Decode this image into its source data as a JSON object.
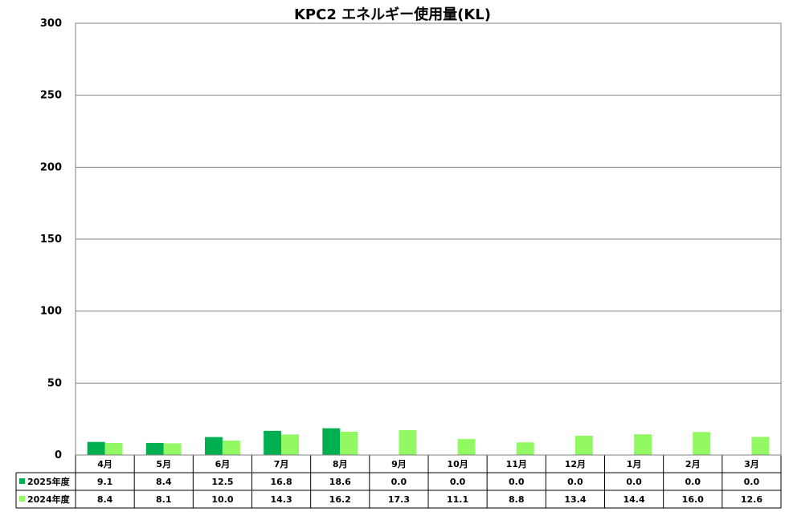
{
  "chart_data": {
    "type": "bar",
    "title": "KPC2 エネルギー使用量(KL)",
    "categories": [
      "4月",
      "5月",
      "6月",
      "7月",
      "8月",
      "9月",
      "10月",
      "11月",
      "12月",
      "1月",
      "2月",
      "3月"
    ],
    "series": [
      {
        "name": "2025年度",
        "color": "#00b050",
        "values": [
          9.1,
          8.4,
          12.5,
          16.8,
          18.6,
          0.0,
          0.0,
          0.0,
          0.0,
          0.0,
          0.0,
          0.0
        ],
        "labels": [
          "9.1",
          "8.4",
          "12.5",
          "16.8",
          "18.6",
          "0.0",
          "0.0",
          "0.0",
          "0.0",
          "0.0",
          "0.0",
          "0.0"
        ]
      },
      {
        "name": "2024年度",
        "color": "#92f962",
        "values": [
          8.4,
          8.1,
          10.0,
          14.3,
          16.2,
          17.3,
          11.1,
          8.8,
          13.4,
          14.4,
          16.0,
          12.6
        ],
        "labels": [
          "8.4",
          "8.1",
          "10.0",
          "14.3",
          "16.2",
          "17.3",
          "11.1",
          "8.8",
          "13.4",
          "14.4",
          "16.0",
          "12.6"
        ]
      }
    ],
    "ylim": [
      0,
      300
    ],
    "yticks": [
      "0",
      "50",
      "100",
      "150",
      "200",
      "250",
      "300"
    ],
    "grid": true,
    "legend": "data-table"
  }
}
